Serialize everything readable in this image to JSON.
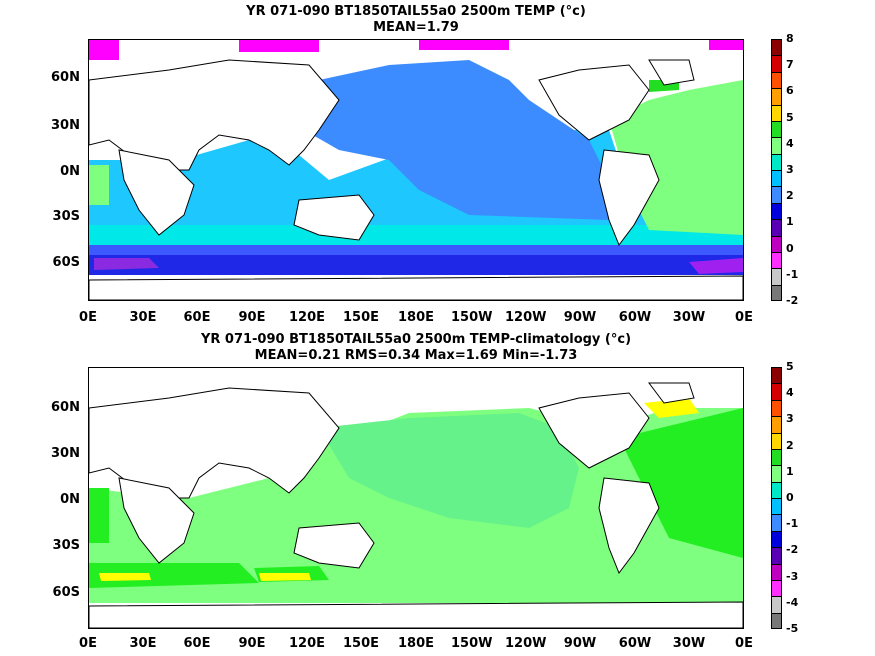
{
  "top": {
    "title_line1": "YR 071-090 BT1850TAIL55a0 2500m TEMP (°c)",
    "title_line2": "MEAN=1.79",
    "colorbar_labels": [
      "8",
      "7",
      "6",
      "5",
      "4",
      "3",
      "2",
      "1",
      "0",
      "-1",
      "-2"
    ]
  },
  "bottom": {
    "title_line1": "YR 071-090 BT1850TAIL55a0 2500m TEMP-climatology (°c)",
    "title_line2": "MEAN=0.21   RMS=0.34   Max=1.69   Min=-1.73",
    "colorbar_labels": [
      "5",
      "4",
      "3",
      "2",
      "1",
      "0",
      "-1",
      "-2",
      "-3",
      "-4",
      "-5"
    ]
  },
  "axes": {
    "lat_labels": [
      "60N",
      "30N",
      "0N",
      "30S",
      "60S"
    ],
    "lon_labels": [
      "0E",
      "30E",
      "60E",
      "90E",
      "120E",
      "150E",
      "180E",
      "150W",
      "120W",
      "90W",
      "60W",
      "30W",
      "0E"
    ]
  },
  "colors": {
    "colorbar": [
      "#8b0000",
      "#d40000",
      "#ff5000",
      "#ff9e00",
      "#ffd700",
      "#22dd22",
      "#7fff7f",
      "#00e8c8",
      "#00bfff",
      "#3c8cff",
      "#0000dd",
      "#5a00b4",
      "#c000c0",
      "#ff30ff",
      "#c8c8c8",
      "#787878"
    ],
    "top_map": {
      "deep_blue": "#3c8cff",
      "sky": "#1ec8ff",
      "cyan": "#00e8e8",
      "blue": "#1e46ff",
      "purple": "#8a2be2",
      "magenta": "#ff00ff",
      "green": "#7fff7f",
      "teal": "#40ffb0"
    },
    "bottom_map": {
      "lightgreen": "#7fff7f",
      "green": "#22ee22",
      "teal": "#40f0a0",
      "yellow": "#ffff00"
    }
  }
}
